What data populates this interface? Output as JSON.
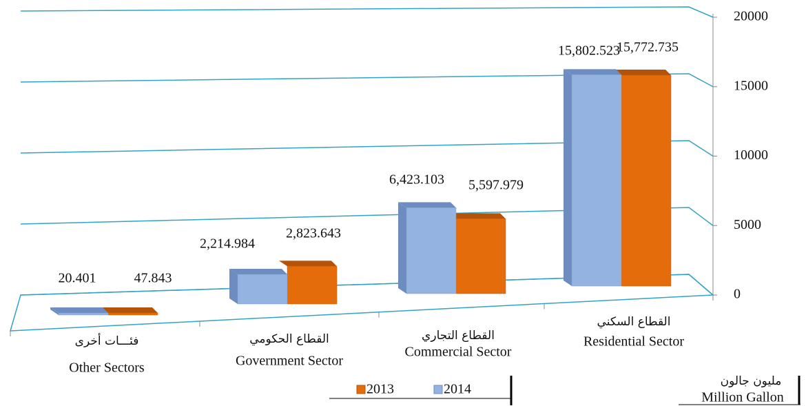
{
  "chart_data": {
    "type": "bar3d",
    "categories_ar": [
      "فئـــات أخرى",
      "القطاع الحكومي",
      "القطاع التجاري",
      "القطاع السكني"
    ],
    "categories": [
      "Other Sectors",
      "Government Sector",
      "Commercial Sector",
      "Residential Sector"
    ],
    "series": [
      {
        "name": "2014",
        "color": "#95b3e0",
        "values": [
          20.401,
          2214.984,
          6423.103,
          15802.523
        ],
        "value_labels": [
          "20.401",
          "2,214.984",
          "6,423.103",
          "15,802.523"
        ]
      },
      {
        "name": "2013",
        "color": "#e46c0a",
        "values": [
          47.843,
          2823.643,
          5597.979,
          15772.735
        ],
        "value_labels": [
          "47.843",
          "2,823.643",
          "5,597.979",
          "15,772.735"
        ]
      }
    ],
    "legend_order": [
      "2013",
      "2014"
    ],
    "unit_ar": "مليون جالون",
    "unit_en": "Million Gallon",
    "ylim": [
      0,
      20000
    ],
    "yticks": [
      0,
      5000,
      10000,
      15000,
      20000
    ],
    "grid": true
  }
}
